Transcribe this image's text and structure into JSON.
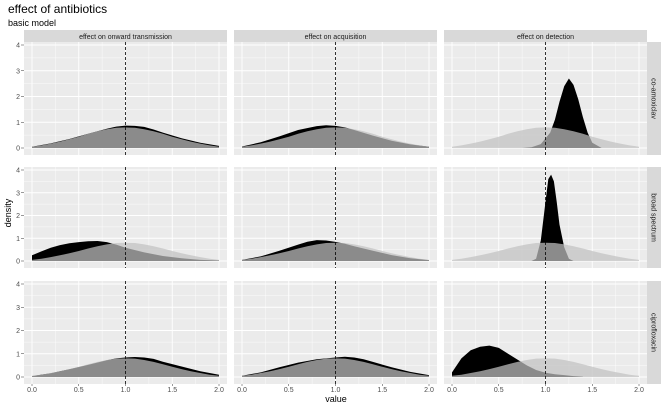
{
  "figure": {
    "title": "effect of antibiotics",
    "subtitle": "basic model",
    "xlabel": "value",
    "ylabel": "density"
  },
  "colors": {
    "panel_background": "#ebebeb",
    "strip_background": "#d9d9d9",
    "grid": "#ffffff",
    "posterior_fill": "#000000",
    "prior_fill": "#c0c0c0",
    "overlap_fill": "#999999",
    "reference_line": "#000000"
  },
  "chart_data": {
    "type": "area",
    "description_of_layers": [
      "posterior (black)",
      "prior (light grey)"
    ],
    "facet_columns": [
      "effect on onward transmission",
      "effect on acquisition",
      "effect on detection"
    ],
    "facet_rows": [
      "co-amoxiclav",
      "broad spectrum",
      "ciprofloxacin"
    ],
    "xlim": [
      0,
      2
    ],
    "ylim": [
      0,
      4
    ],
    "x_ticks": [
      0.0,
      0.5,
      1.0,
      1.5,
      2.0
    ],
    "x_tick_labels": [
      "0.0",
      "0.5",
      "1.0",
      "1.5",
      "2.0"
    ],
    "y_ticks": [
      0,
      1,
      2,
      3,
      4
    ],
    "y_tick_labels": [
      "0",
      "1",
      "2",
      "3",
      "4"
    ],
    "reference_x": 1.0,
    "grid": true,
    "prior": {
      "x": [
        0.0,
        0.1,
        0.2,
        0.3,
        0.4,
        0.5,
        0.6,
        0.7,
        0.8,
        0.9,
        1.0,
        1.1,
        1.2,
        1.3,
        1.4,
        1.5,
        1.6,
        1.7,
        1.8,
        1.9,
        2.0
      ],
      "y": [
        0.05,
        0.1,
        0.17,
        0.25,
        0.34,
        0.44,
        0.55,
        0.65,
        0.73,
        0.79,
        0.8,
        0.79,
        0.73,
        0.65,
        0.55,
        0.44,
        0.34,
        0.25,
        0.17,
        0.1,
        0.05
      ]
    },
    "panels": [
      {
        "row": "co-amoxiclav",
        "col": "effect on onward transmission",
        "x": [
          0.0,
          0.2,
          0.4,
          0.6,
          0.8,
          0.9,
          1.0,
          1.1,
          1.2,
          1.3,
          1.4,
          1.6,
          1.8,
          2.0
        ],
        "y": [
          0.05,
          0.18,
          0.35,
          0.55,
          0.75,
          0.83,
          0.87,
          0.86,
          0.82,
          0.72,
          0.6,
          0.38,
          0.2,
          0.08
        ]
      },
      {
        "row": "co-amoxiclav",
        "col": "effect on acquisition",
        "x": [
          0.0,
          0.2,
          0.4,
          0.6,
          0.8,
          0.9,
          1.0,
          1.1,
          1.2,
          1.4,
          1.6,
          1.8,
          2.0
        ],
        "y": [
          0.06,
          0.22,
          0.45,
          0.7,
          0.85,
          0.88,
          0.86,
          0.8,
          0.7,
          0.48,
          0.28,
          0.14,
          0.05
        ]
      },
      {
        "row": "co-amoxiclav",
        "col": "effect on detection",
        "x": [
          0.75,
          0.85,
          0.95,
          1.05,
          1.1,
          1.15,
          1.2,
          1.25,
          1.3,
          1.35,
          1.4,
          1.45,
          1.5,
          1.6
        ],
        "y": [
          0.0,
          0.03,
          0.15,
          0.6,
          1.1,
          1.8,
          2.4,
          2.7,
          2.45,
          1.9,
          1.2,
          0.6,
          0.2,
          0.0
        ]
      },
      {
        "row": "broad spectrum",
        "col": "effect on onward transmission",
        "x": [
          0.0,
          0.1,
          0.2,
          0.3,
          0.4,
          0.5,
          0.6,
          0.7,
          0.8,
          0.9,
          1.0,
          1.2,
          1.4,
          1.6,
          1.8,
          2.0
        ],
        "y": [
          0.25,
          0.42,
          0.58,
          0.7,
          0.78,
          0.83,
          0.87,
          0.88,
          0.83,
          0.72,
          0.58,
          0.38,
          0.22,
          0.12,
          0.05,
          0.02
        ]
      },
      {
        "row": "broad spectrum",
        "col": "effect on acquisition",
        "x": [
          0.0,
          0.2,
          0.4,
          0.6,
          0.7,
          0.8,
          0.9,
          1.0,
          1.1,
          1.2,
          1.4,
          1.6,
          1.8,
          2.0
        ],
        "y": [
          0.05,
          0.2,
          0.45,
          0.72,
          0.85,
          0.92,
          0.9,
          0.84,
          0.76,
          0.65,
          0.45,
          0.26,
          0.12,
          0.04
        ]
      },
      {
        "row": "broad spectrum",
        "col": "effect on detection",
        "x": [
          0.85,
          0.9,
          0.95,
          1.0,
          1.03,
          1.06,
          1.09,
          1.12,
          1.15,
          1.2,
          1.25,
          1.3
        ],
        "y": [
          0.0,
          0.1,
          0.9,
          2.6,
          3.6,
          3.8,
          3.5,
          2.6,
          1.6,
          0.6,
          0.1,
          0.0
        ]
      },
      {
        "row": "ciprofloxacin",
        "col": "effect on onward transmission",
        "x": [
          0.0,
          0.2,
          0.4,
          0.6,
          0.8,
          0.9,
          1.0,
          1.1,
          1.2,
          1.3,
          1.4,
          1.6,
          1.8,
          2.0
        ],
        "y": [
          0.04,
          0.16,
          0.33,
          0.52,
          0.72,
          0.8,
          0.84,
          0.86,
          0.84,
          0.78,
          0.66,
          0.45,
          0.25,
          0.1
        ]
      },
      {
        "row": "ciprofloxacin",
        "col": "effect on acquisition",
        "x": [
          0.0,
          0.2,
          0.4,
          0.6,
          0.8,
          0.9,
          1.0,
          1.1,
          1.2,
          1.3,
          1.4,
          1.6,
          1.8,
          2.0
        ],
        "y": [
          0.05,
          0.2,
          0.42,
          0.62,
          0.76,
          0.8,
          0.84,
          0.87,
          0.84,
          0.76,
          0.65,
          0.42,
          0.22,
          0.08
        ]
      },
      {
        "row": "ciprofloxacin",
        "col": "effect on detection",
        "x": [
          0.0,
          0.1,
          0.2,
          0.3,
          0.4,
          0.5,
          0.6,
          0.7,
          0.8,
          0.9,
          1.0,
          1.1,
          1.2,
          1.3,
          1.4
        ],
        "y": [
          0.2,
          0.8,
          1.15,
          1.3,
          1.35,
          1.25,
          1.0,
          0.75,
          0.5,
          0.3,
          0.18,
          0.12,
          0.08,
          0.04,
          0.01
        ]
      }
    ]
  }
}
